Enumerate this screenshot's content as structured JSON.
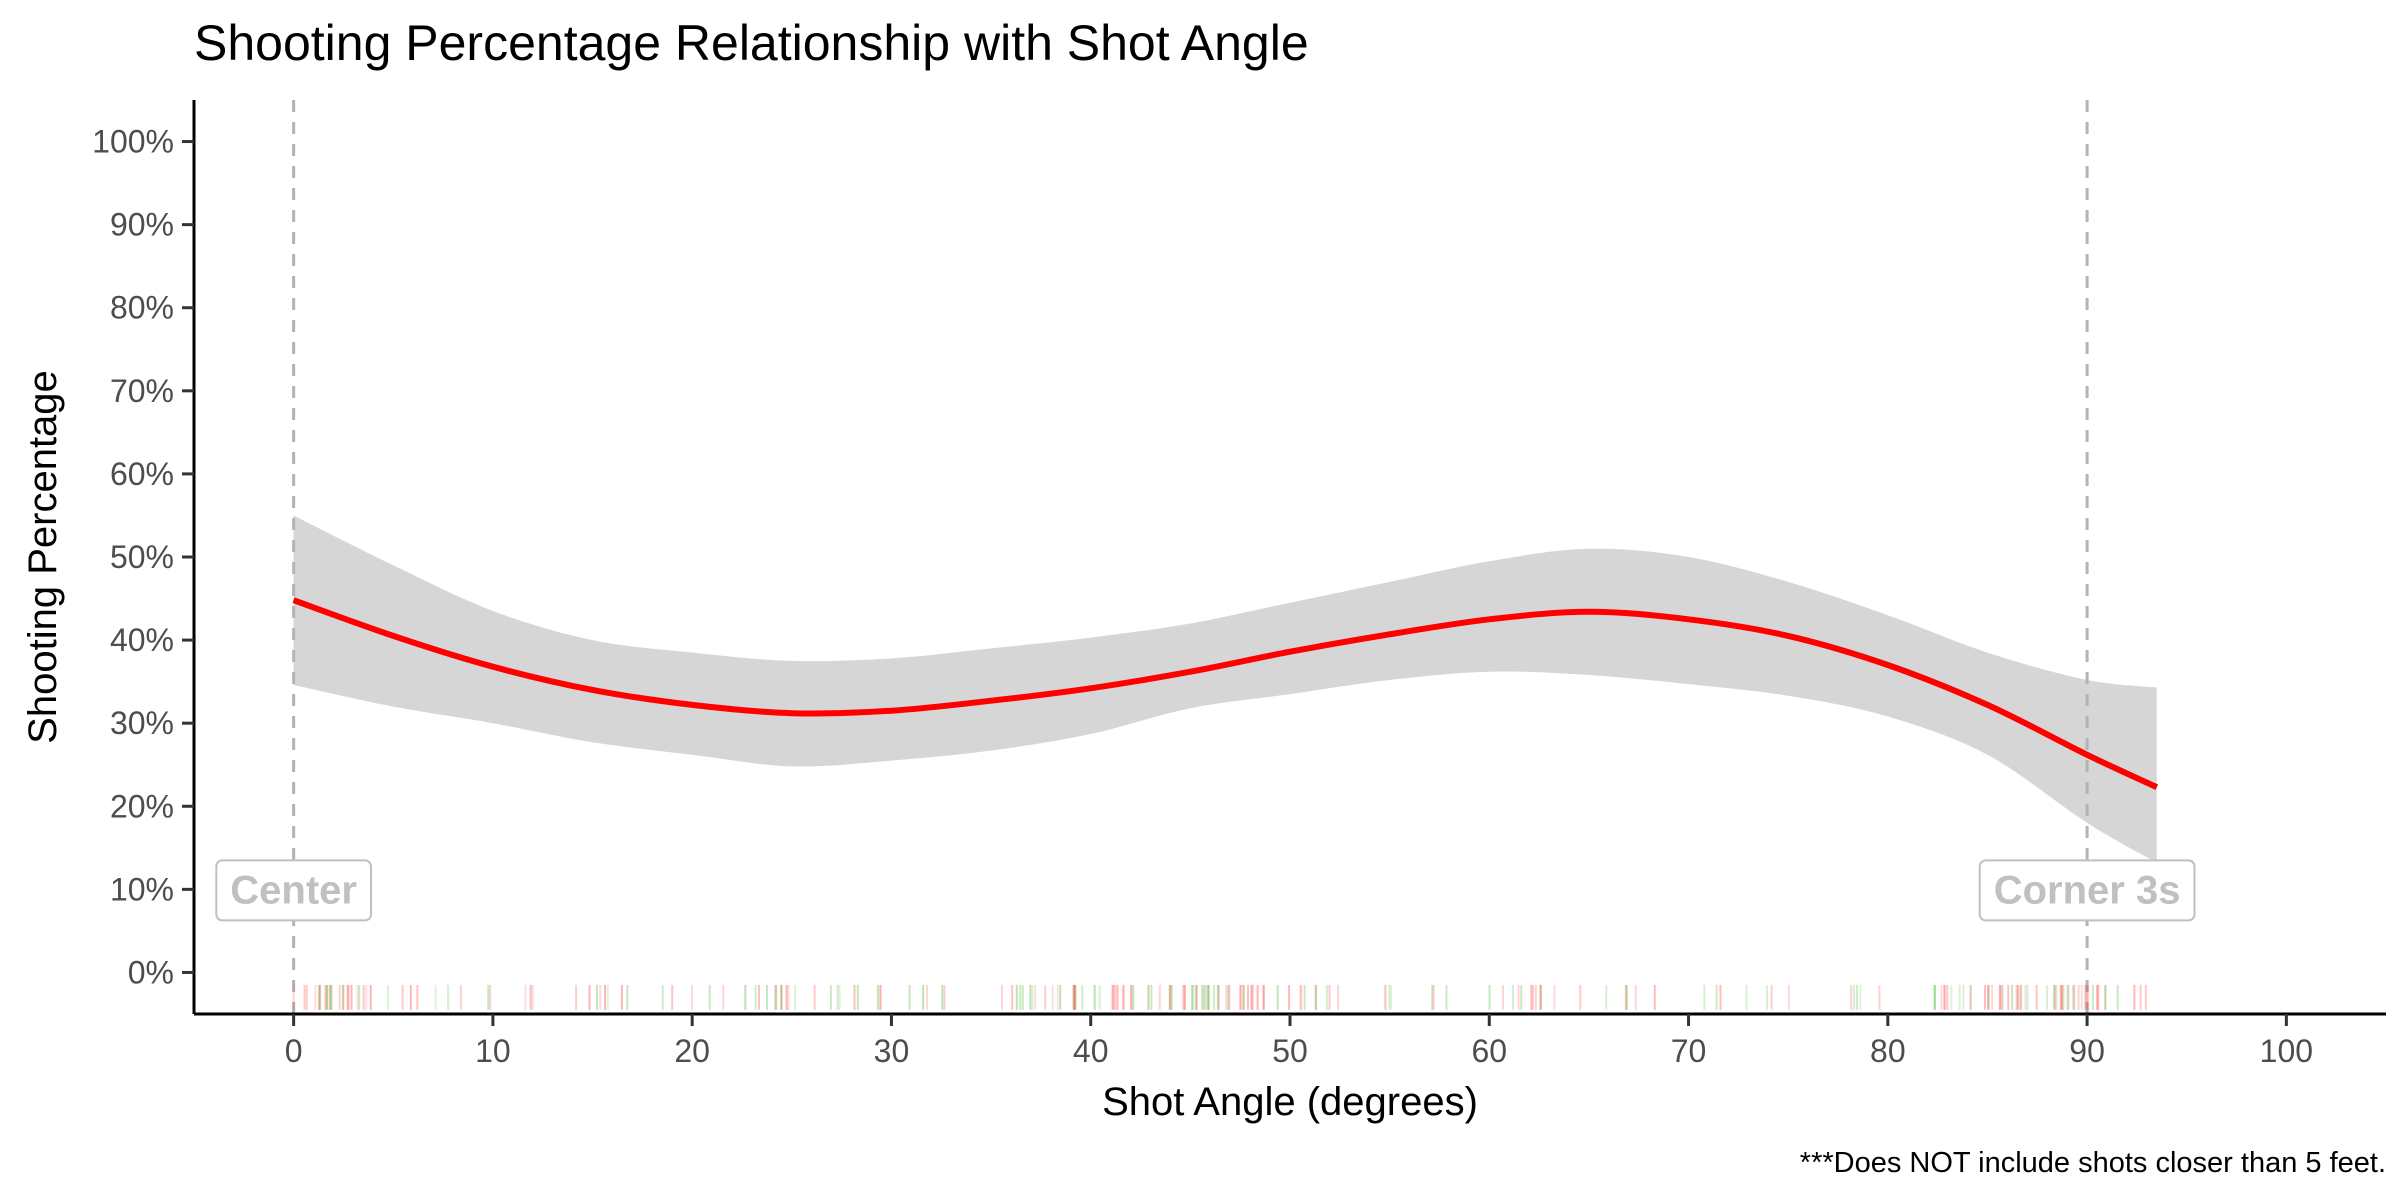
{
  "chart_data": {
    "type": "line",
    "title": "Shooting Percentage Relationship with Shot Angle",
    "xlabel": "Shot Angle (degrees)",
    "ylabel": "Shooting Percentage",
    "caption": "***Does NOT include shots closer than 5 feet.",
    "xlim": [
      -5,
      105
    ],
    "ylim": [
      -0.05,
      1.05
    ],
    "x_ticks": [
      0,
      10,
      20,
      30,
      40,
      50,
      60,
      70,
      80,
      90,
      100
    ],
    "x_tick_labels": [
      "0",
      "10",
      "20",
      "30",
      "40",
      "50",
      "60",
      "70",
      "80",
      "90",
      "100"
    ],
    "y_ticks": [
      0,
      0.1,
      0.2,
      0.3,
      0.4,
      0.5,
      0.6,
      0.7,
      0.8,
      0.9,
      1.0
    ],
    "y_tick_labels": [
      "0%",
      "10%",
      "20%",
      "30%",
      "40%",
      "50%",
      "60%",
      "70%",
      "80%",
      "90%",
      "100%"
    ],
    "grid": false,
    "legend": "none",
    "series": [
      {
        "color": "#ff0000",
        "x": [
          0,
          5,
          10,
          15,
          20,
          25,
          30,
          35,
          40,
          45,
          50,
          55,
          60,
          65,
          70,
          75,
          80,
          85,
          90,
          93.5
        ],
        "y": [
          0.448,
          0.405,
          0.368,
          0.34,
          0.322,
          0.312,
          0.315,
          0.327,
          0.342,
          0.362,
          0.386,
          0.407,
          0.425,
          0.434,
          0.425,
          0.405,
          0.37,
          0.322,
          0.262,
          0.223
        ],
        "ci_lower": [
          0.346,
          0.32,
          0.3,
          0.277,
          0.262,
          0.248,
          0.255,
          0.267,
          0.287,
          0.318,
          0.335,
          0.352,
          0.362,
          0.358,
          0.347,
          0.333,
          0.308,
          0.262,
          0.18,
          0.132
        ],
        "ci_upper": [
          0.55,
          0.49,
          0.435,
          0.4,
          0.385,
          0.375,
          0.378,
          0.39,
          0.403,
          0.42,
          0.445,
          0.47,
          0.495,
          0.51,
          0.5,
          0.47,
          0.43,
          0.385,
          0.352,
          0.343
        ]
      }
    ],
    "band_color": "#d6d6d6",
    "reference_lines": [
      {
        "x": 0,
        "label": "Center"
      },
      {
        "x": 90,
        "label": "Corner 3s"
      }
    ],
    "annotation_color": "#c0c0c0",
    "rug": {
      "make_color": "#5cc04a",
      "miss_color": "#ff5050",
      "min_angle": 0,
      "max_angle": 93.5
    }
  }
}
